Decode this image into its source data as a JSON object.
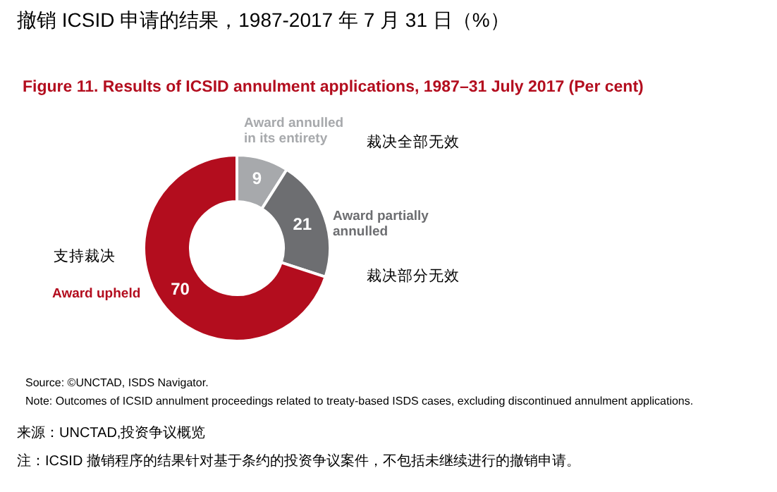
{
  "chart_data": {
    "type": "donut",
    "title": "撤销 ICSID 申请的结果，1987-2017 年 7 月 31 日（%）",
    "subtitle": "Figure 11. Results of ICSID annulment applications, 1987–31 July 2017 (Per cent)",
    "categories": [
      "Award annulled in its entirety",
      "Award partially annulled",
      "Award upheld"
    ],
    "values": [
      9,
      21,
      70
    ],
    "colors": [
      "#a7a9ac",
      "#6d6e71",
      "#b30d1e"
    ],
    "data_labels": true,
    "legend": false,
    "annotations": [
      "裁决全部无效",
      "裁决部分无效",
      "支持裁决",
      "Source: ©UNCTAD, ISDS Navigator.",
      "Note: Outcomes of ICSID annulment proceedings related to treaty-based ISDS cases, excluding discontinued annulment applications.",
      "来源：UNCTAD,投资争议概览",
      "注：ICSID 撤销程序的结果针对基于条约的投资争议案件，不包括未继续进行的撤销申请。"
    ]
  }
}
